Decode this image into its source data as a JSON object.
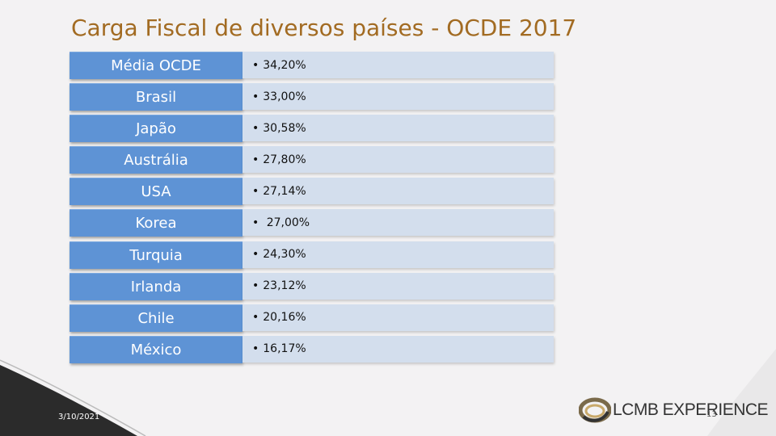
{
  "slide": {
    "title": "Carga Fiscal de diversos países - OCDE 2017",
    "rows": [
      {
        "country": "Média OCDE",
        "value": "34,20%"
      },
      {
        "country": "Brasil",
        "value": "33,00%"
      },
      {
        "country": "Japão",
        "value": "30,58%"
      },
      {
        "country": "Austrália",
        "value": "27,80%"
      },
      {
        "country": "USA",
        "value": "27,14%"
      },
      {
        "country": "Korea",
        "value": " 27,00%"
      },
      {
        "country": "Turquia",
        "value": "24,30%"
      },
      {
        "country": "Irlanda",
        "value": "23,12%"
      },
      {
        "country": "Chile",
        "value": "20,16%"
      },
      {
        "country": "México",
        "value": "16,17%"
      }
    ],
    "bullet": "•",
    "footer": {
      "date": "3/10/2021",
      "logo_text": "LCMB EXPERIENCE",
      "page_number": "13"
    },
    "colors": {
      "title": "#a26b22",
      "country_box": "#5e93d5",
      "value_box": "#d3deed",
      "decoration": "#2b2b2b"
    },
    "icons": {
      "logo": "lcmb-swirl-logo"
    }
  }
}
